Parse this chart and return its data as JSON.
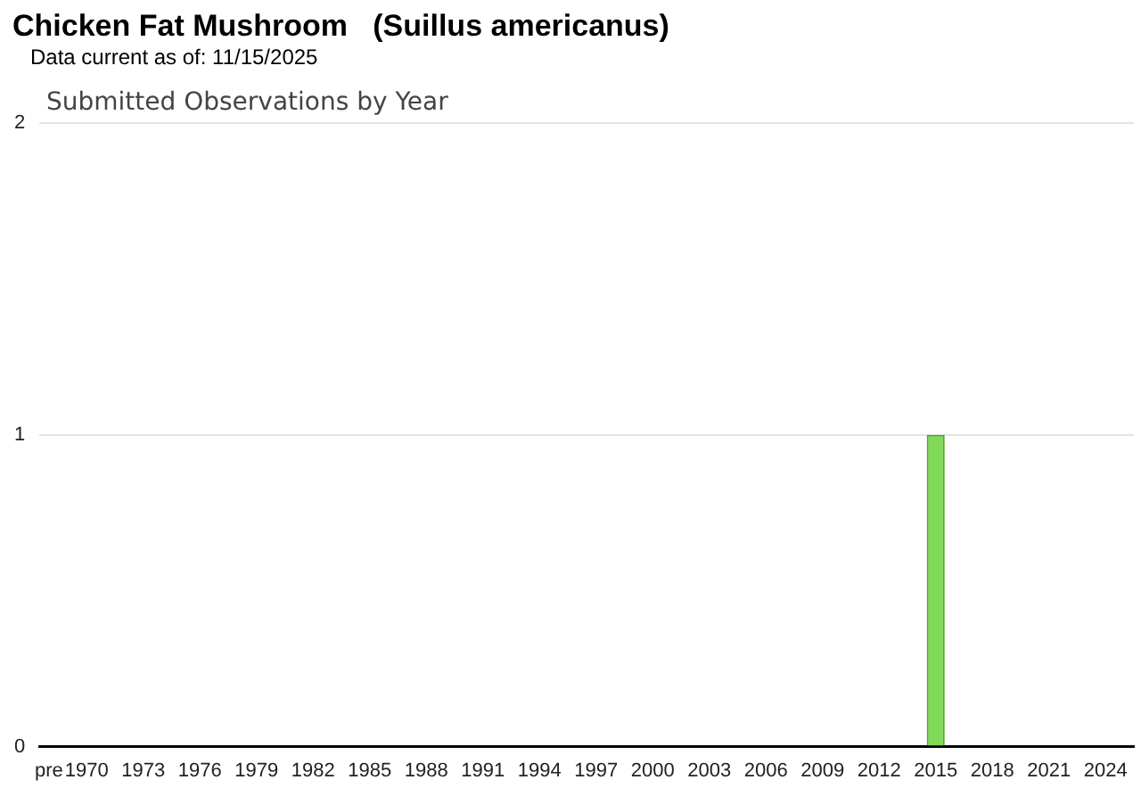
{
  "chart_data": {
    "type": "bar",
    "title": "Chicken Fat Mushroom   (Suillus americanus)",
    "subtitle": "Data current as of: 11/15/2025",
    "annotations": [
      "Submitted Observations by Year"
    ],
    "categories": [
      "pre",
      null,
      "1970",
      null,
      null,
      "1973",
      null,
      null,
      "1976",
      null,
      null,
      "1979",
      null,
      null,
      "1982",
      null,
      null,
      "1985",
      null,
      null,
      "1988",
      null,
      null,
      "1991",
      null,
      null,
      "1994",
      null,
      null,
      "1997",
      null,
      null,
      "2000",
      null,
      null,
      "2003",
      null,
      null,
      "2006",
      null,
      null,
      "2009",
      null,
      null,
      "2012",
      null,
      null,
      "2015",
      null,
      null,
      "2018",
      null,
      null,
      "2021",
      null,
      null,
      "2024",
      null
    ],
    "values": [
      0,
      0,
      0,
      0,
      0,
      0,
      0,
      0,
      0,
      0,
      0,
      0,
      0,
      0,
      0,
      0,
      0,
      0,
      0,
      0,
      0,
      0,
      0,
      0,
      0,
      0,
      0,
      0,
      0,
      0,
      0,
      0,
      0,
      0,
      0,
      0,
      0,
      0,
      0,
      0,
      0,
      0,
      0,
      0,
      0,
      0,
      0,
      1,
      0,
      0,
      0,
      0,
      0,
      0,
      0,
      0,
      0,
      0
    ],
    "color": "#7ed957",
    "ylim": [
      0,
      2
    ],
    "yticks": [
      0,
      1,
      2
    ],
    "grid": "y",
    "legend": false
  }
}
